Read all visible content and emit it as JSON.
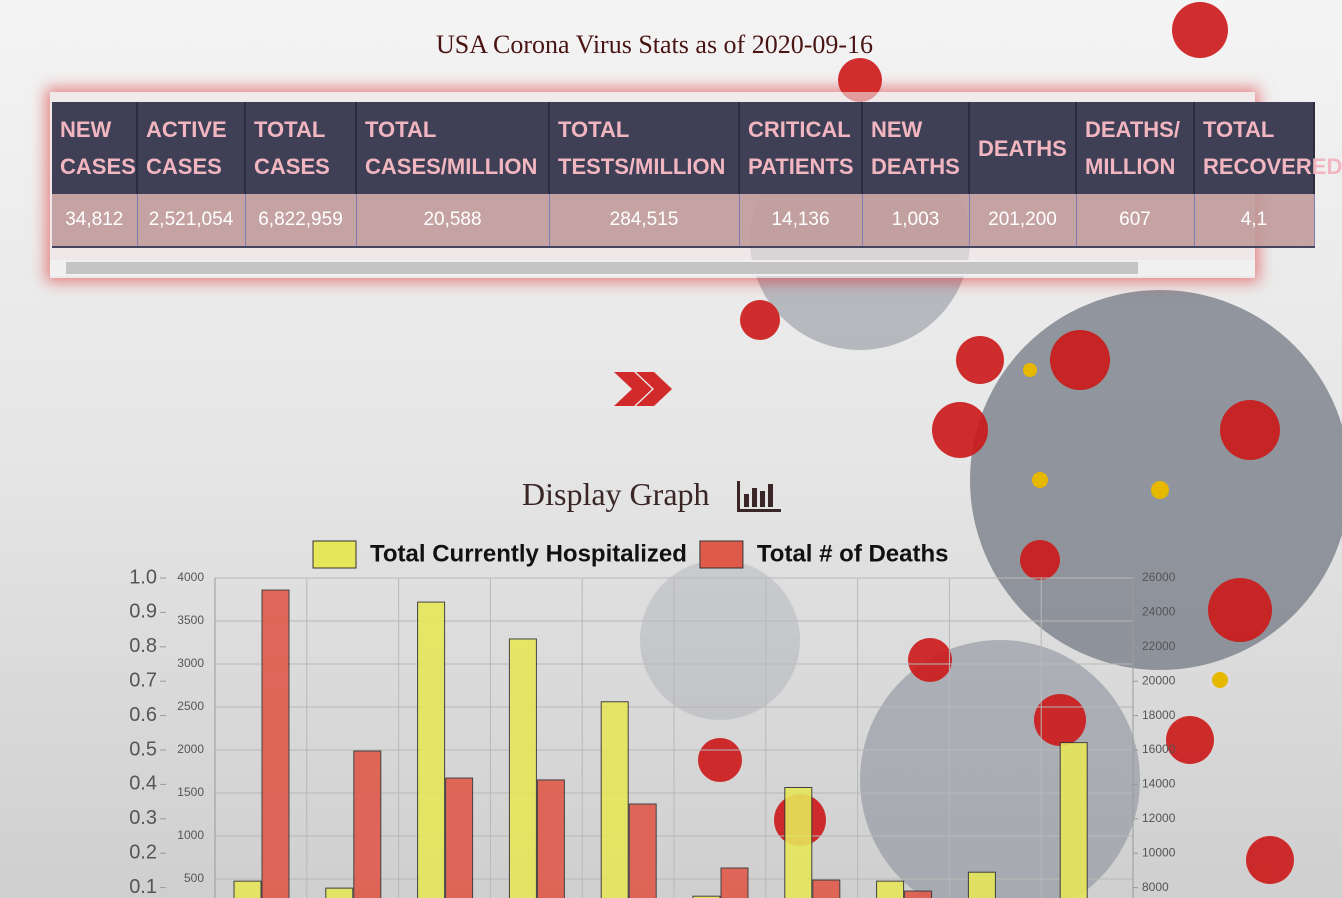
{
  "header": {
    "title": "USA Corona Virus Stats as of 2020-09-16"
  },
  "table": {
    "headers": [
      "NEW CASES",
      "ACTIVE CASES",
      "TOTAL CASES",
      "TOTAL CASES/MILLION",
      "TOTAL TESTS/MILLION",
      "CRITICAL PATIENTS",
      "NEW DEATHS",
      "DEATHS",
      "DEATHS/ MILLION",
      "TOTAL RECOVERED"
    ],
    "rows": [
      [
        "34,812",
        "2,521,054",
        "6,822,959",
        "20,588",
        "284,515",
        "14,136",
        "1,003",
        "201,200",
        "607",
        "4,1"
      ]
    ]
  },
  "graph_heading": "Display Graph",
  "chart_data": {
    "type": "bar",
    "legend": "top",
    "grid": true,
    "categories": [
      null,
      null,
      null,
      null,
      null,
      null,
      null,
      null,
      null,
      null
    ],
    "series": [
      {
        "name": "Total Currently Hospitalized",
        "color": "#e6e65a",
        "axis": "y",
        "values": [
          475,
          394,
          3720,
          3291,
          2561,
          300,
          1564,
          475,
          579,
          2086
        ]
      },
      {
        "name": "Total # of Deaths",
        "color": "#e05a4a",
        "axis": "y2",
        "values": [
          25300,
          15940,
          14370,
          14260,
          12860,
          9140,
          8440,
          7800,
          null,
          null
        ]
      }
    ],
    "y3lim": [
      0,
      1
    ],
    "y3ticks": [
      0.1,
      0.2,
      0.3,
      0.4,
      0.5,
      0.6,
      0.7,
      0.8,
      0.9,
      {
        "value": 1,
        "label": "1.0"
      }
    ],
    "ylim": [
      0,
      4000
    ],
    "yticks": [
      500,
      1000,
      1500,
      2000,
      2500,
      3000,
      3500,
      4000
    ],
    "y2lim": [
      6000,
      26000
    ],
    "y2ticks": [
      8000,
      10000,
      12000,
      14000,
      16000,
      18000,
      20000,
      22000,
      24000,
      26000
    ]
  }
}
